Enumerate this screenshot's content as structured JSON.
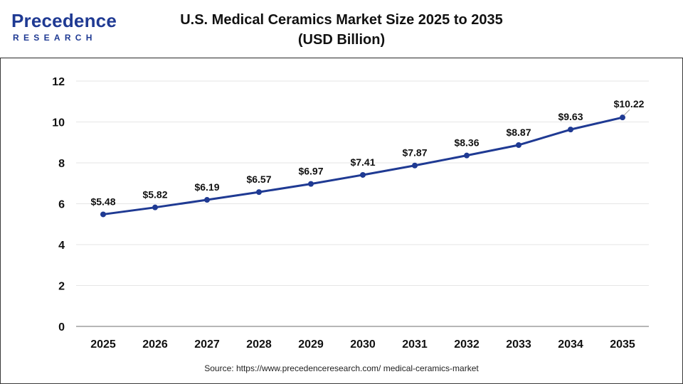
{
  "header": {
    "logo_top": "Precedence",
    "logo_bottom": "RESEARCH",
    "title_line1": "U.S. Medical Ceramics Market Size 2025 to 2035",
    "title_line2": "(USD Billion)"
  },
  "source": "Source: https://www.precedenceresearch.com/ medical-ceramics-market",
  "colors": {
    "line": "#1f3a93",
    "grid": "#e6e6e6",
    "brand": "#1f3a93"
  },
  "chart_data": {
    "type": "line",
    "x": [
      "2025",
      "2026",
      "2027",
      "2028",
      "2029",
      "2030",
      "2031",
      "2032",
      "2033",
      "2034",
      "2035"
    ],
    "series": [
      {
        "values": [
          5.48,
          5.82,
          6.19,
          6.57,
          6.97,
          7.41,
          7.87,
          8.36,
          8.87,
          9.63,
          10.22
        ],
        "labels": [
          "$5.48",
          "$5.82",
          "$6.19",
          "$6.57",
          "$6.97",
          "$7.41",
          "$7.87",
          "$8.36",
          "$8.87",
          "$9.63",
          "$10.22"
        ]
      }
    ],
    "yticks": [
      "0",
      "2",
      "4",
      "6",
      "8",
      "10",
      "12"
    ],
    "ylim": [
      0,
      12
    ],
    "grid": true,
    "title": "U.S. Medical Ceramics Market Size 2025 to 2035 (USD Billion)",
    "xlabel": "",
    "ylabel": ""
  }
}
